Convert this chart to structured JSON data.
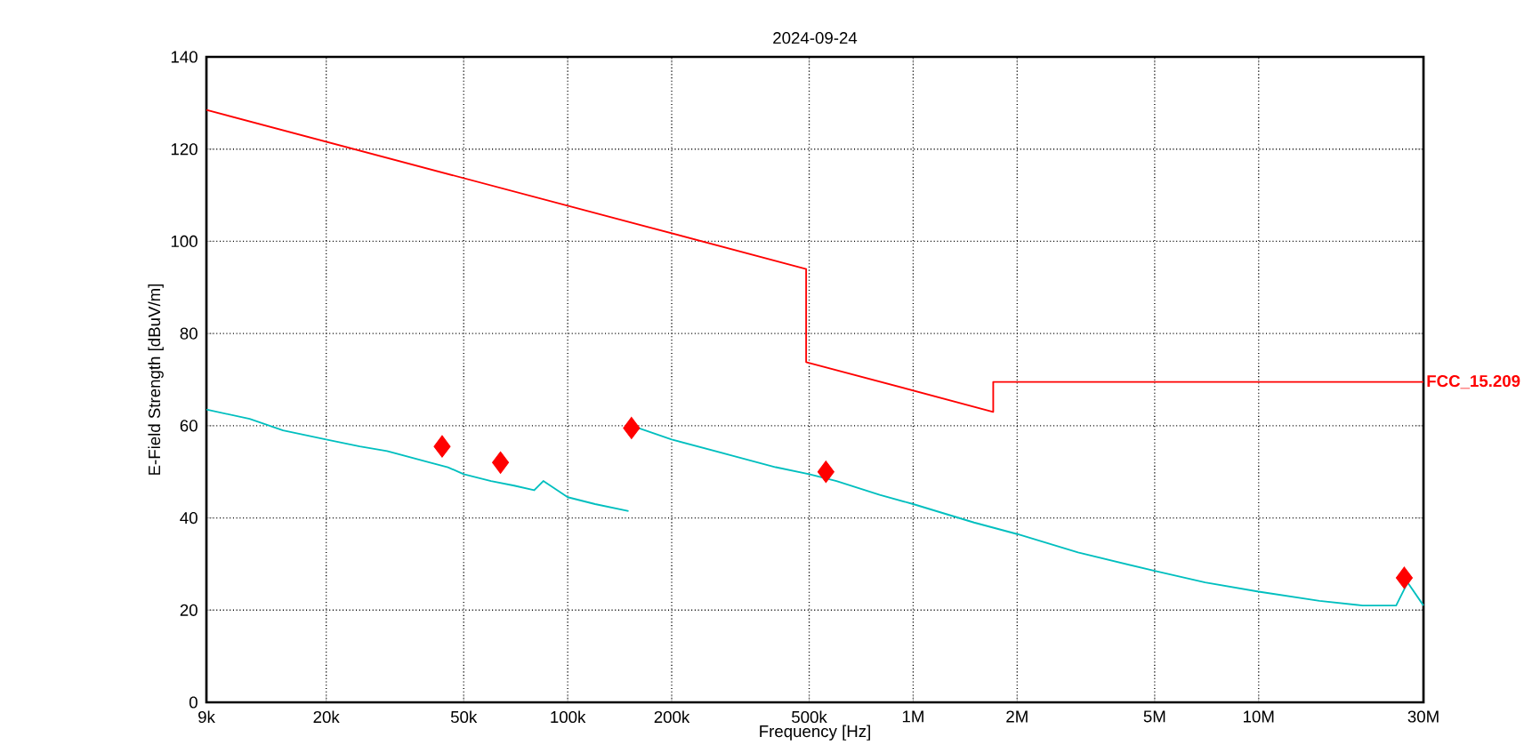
{
  "chart_data": {
    "type": "line",
    "title": "2024-09-24",
    "xlabel": "Frequency [Hz]",
    "ylabel": "E-Field Strength [dBuV/m]",
    "log": "x",
    "grid": true,
    "legend": false,
    "xlim": [
      9000,
      30000000
    ],
    "ylim": [
      0,
      140
    ],
    "xticks": [
      {
        "value": 9000,
        "label": "9k"
      },
      {
        "value": 20000,
        "label": "20k"
      },
      {
        "value": 50000,
        "label": "50k"
      },
      {
        "value": 100000,
        "label": "100k"
      },
      {
        "value": 200000,
        "label": "200k"
      },
      {
        "value": 500000,
        "label": "500k"
      },
      {
        "value": 1000000,
        "label": "1M"
      },
      {
        "value": 2000000,
        "label": "2M"
      },
      {
        "value": 5000000,
        "label": "5M"
      },
      {
        "value": 10000000,
        "label": "10M"
      },
      {
        "value": 30000000,
        "label": "30M"
      }
    ],
    "yticks": [
      0,
      20,
      40,
      60,
      80,
      100,
      120,
      140
    ],
    "series": [
      {
        "name": "FCC_15.209",
        "color": "#ff0000",
        "x": [
          9000,
          490000,
          490000,
          1705000,
          1705000,
          30000000
        ],
        "values": [
          128.5,
          94,
          73.8,
          63,
          69.5,
          69.5
        ]
      },
      {
        "color": "#00bfbf",
        "x": [
          9000,
          12000,
          15000,
          20000,
          25000,
          30000,
          40000,
          45000,
          50000,
          60000,
          70000,
          80000,
          85000,
          100000,
          120000,
          150000,
          155000,
          160000,
          200000,
          300000,
          400000,
          500000,
          600000,
          800000,
          1000000,
          1500000,
          2000000,
          3000000,
          5000000,
          7000000,
          10000000,
          15000000,
          20000000,
          25000000,
          27000000,
          30000000
        ],
        "values": [
          63.5,
          61.5,
          59,
          57,
          55.5,
          54.5,
          52,
          51,
          49.5,
          48,
          47,
          46,
          48,
          44.5,
          43,
          41.5,
          null,
          59.5,
          57,
          53.5,
          51,
          49.5,
          48,
          45,
          43,
          39,
          36.5,
          32.5,
          28.5,
          26,
          24,
          22,
          21,
          21,
          26,
          21
        ]
      },
      {
        "type": "scatter",
        "marker": "diamond",
        "color": "#ff0000",
        "x": [
          43300,
          63900,
          153000,
          559000,
          26400000
        ],
        "values": [
          55.5,
          52,
          59.5,
          50,
          27
        ]
      }
    ]
  }
}
